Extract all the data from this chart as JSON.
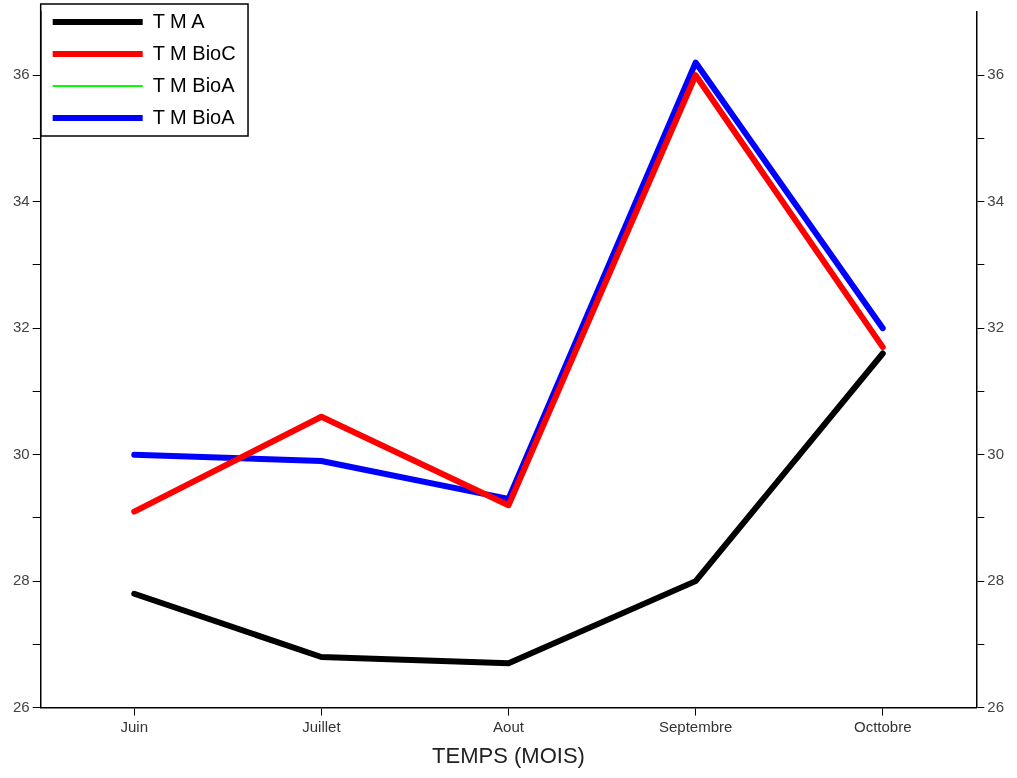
{
  "chart_data": {
    "type": "line",
    "xlabel": "TEMPS (MOIS)",
    "categories": [
      "Juin",
      "Juillet",
      "Aout",
      "Septembre",
      "Octtobre"
    ],
    "series": [
      {
        "name": "T M A",
        "color": "#000000",
        "values": [
          27.8,
          26.8,
          26.7,
          28.0,
          31.6
        ]
      },
      {
        "name": "T M BioC",
        "color": "#ff0000",
        "values": [
          29.1,
          30.6,
          29.2,
          36.0,
          31.7
        ]
      },
      {
        "name": "T M BioA",
        "color": "#00ff00",
        "values": [
          null,
          null,
          null,
          null,
          null
        ]
      },
      {
        "name": "T M BioA",
        "color": "#0000ff",
        "values": [
          30.0,
          29.9,
          29.3,
          36.2,
          32.0
        ]
      }
    ],
    "ylim": [
      26,
      37
    ],
    "yticks": [
      26,
      {
        "value": 27,
        "label": null
      },
      28,
      {
        "value": 29,
        "label": null
      },
      30,
      {
        "value": 31,
        "label": null
      },
      32,
      {
        "value": 33,
        "label": null
      },
      34,
      {
        "value": 35,
        "label": null
      },
      36
    ],
    "y2lim": [
      26,
      37
    ],
    "y2ticks": [
      26,
      {
        "value": 27,
        "label": null
      },
      28,
      {
        "value": 29,
        "label": null
      },
      30,
      {
        "value": 31,
        "label": null
      },
      32,
      {
        "value": 33,
        "label": null
      },
      34,
      {
        "value": 35,
        "label": null
      },
      36
    ],
    "grid": false,
    "legend": "top left",
    "marker": "none",
    "line_style": "solid"
  }
}
